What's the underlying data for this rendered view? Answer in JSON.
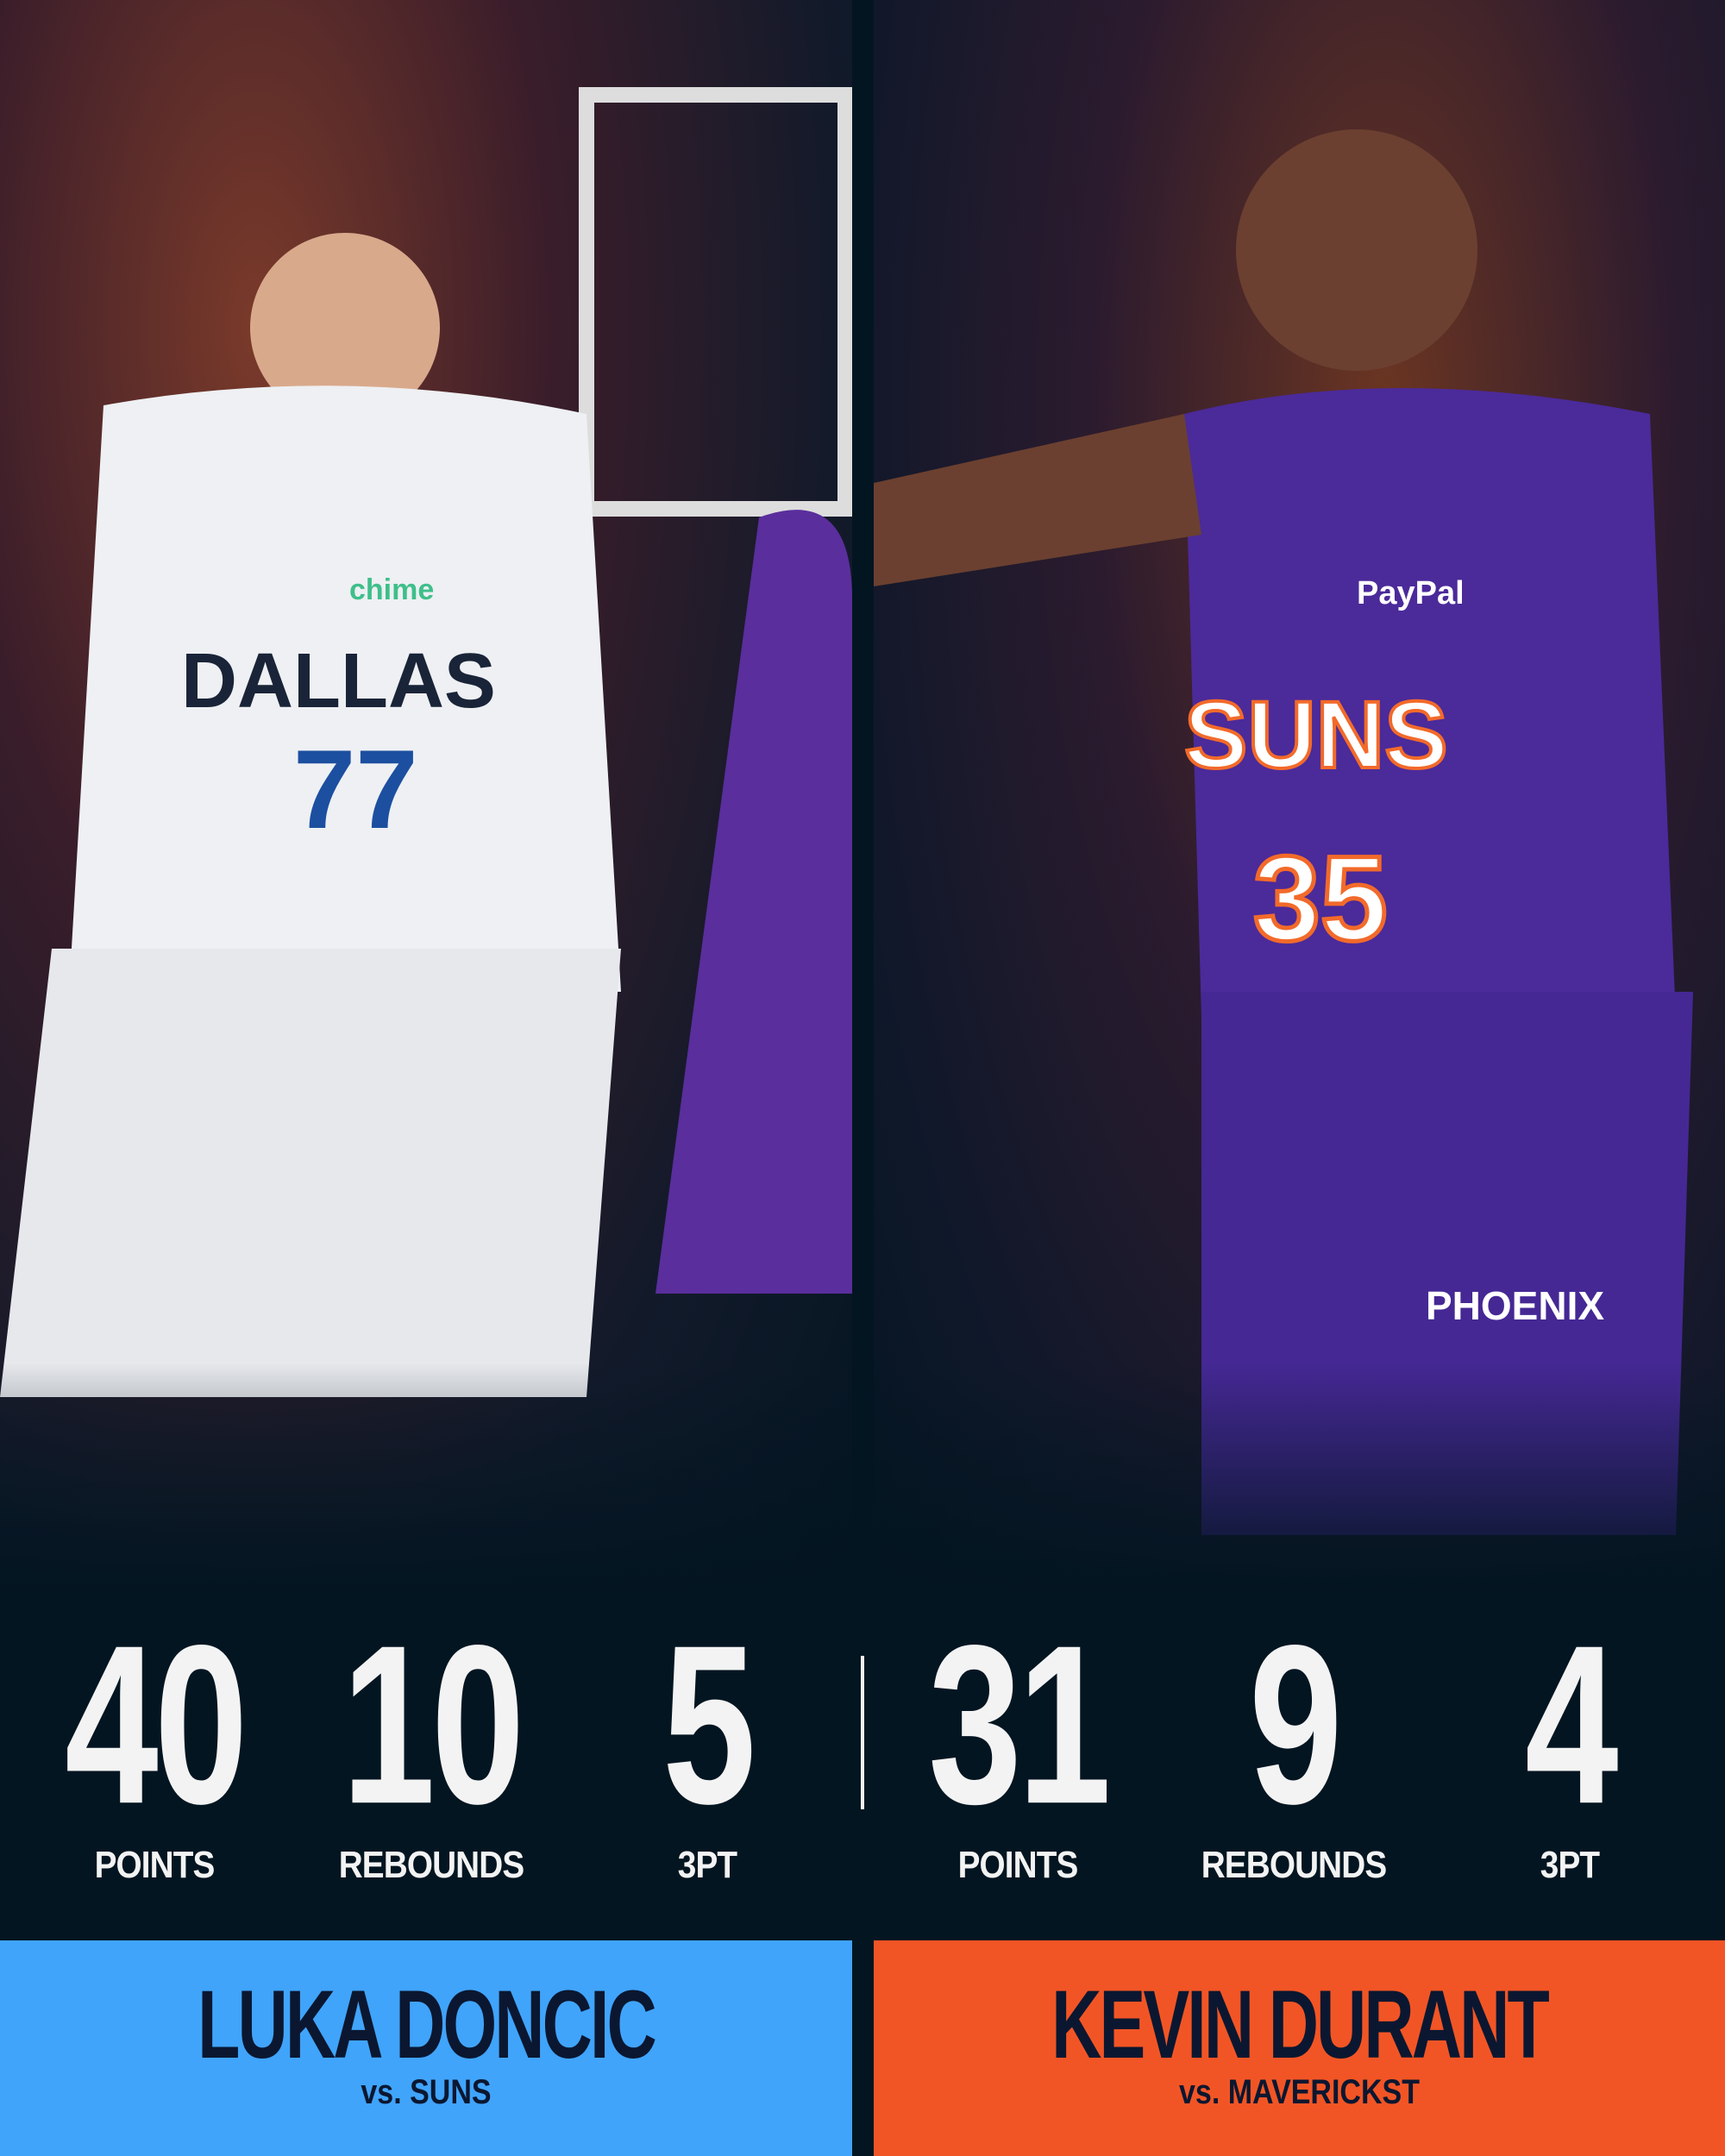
{
  "colors": {
    "background": "#031521",
    "luka_panel": "#40a4fb",
    "durant_panel": "#f25525",
    "name_text": "#0b1730",
    "stat_text": "#f3f3f3"
  },
  "players": [
    {
      "name": "LUKA DONCIC",
      "opponent": "vs. SUNS",
      "stats": [
        {
          "value": "40",
          "label": "POINTS"
        },
        {
          "value": "10",
          "label": "REBOUNDS"
        },
        {
          "value": "5",
          "label": "3PT"
        }
      ],
      "photo_jersey": {
        "team": "DALLAS",
        "number": "77",
        "sponsor": "chime"
      }
    },
    {
      "name": "KEVIN DURANT",
      "opponent": "vs. MAVERICKST",
      "stats": [
        {
          "value": "31",
          "label": "POINTS"
        },
        {
          "value": "9",
          "label": "REBOUNDS"
        },
        {
          "value": "4",
          "label": "3PT"
        }
      ],
      "photo_jersey": {
        "team": "SUNS",
        "number": "35",
        "sponsor": "PayPal",
        "shorts": "PHOENIX"
      }
    }
  ]
}
